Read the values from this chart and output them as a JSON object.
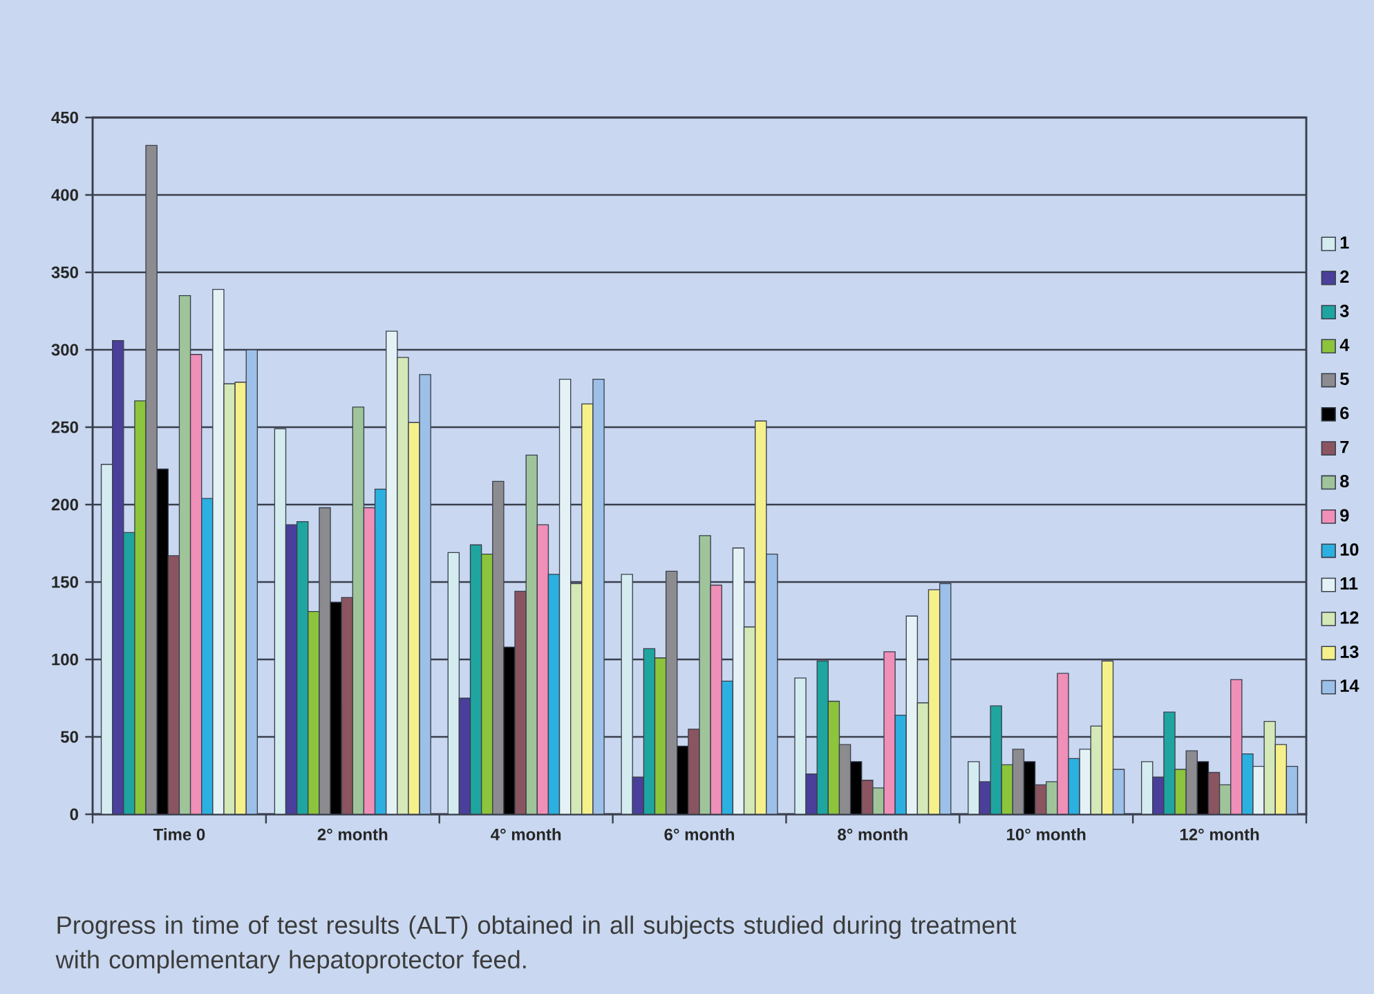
{
  "chart_data": {
    "type": "bar",
    "categories": [
      "Time 0",
      "2° month",
      "4° month",
      "6° month",
      "8° month",
      "10° month",
      "12° month"
    ],
    "series": [
      {
        "name": "1",
        "color": "#d4ecf0",
        "values": [
          226,
          249,
          169,
          155,
          88,
          34,
          34
        ]
      },
      {
        "name": "2",
        "color": "#4a3f9a",
        "values": [
          306,
          187,
          75,
          24,
          26,
          21,
          24
        ]
      },
      {
        "name": "3",
        "color": "#1fa5a0",
        "values": [
          182,
          189,
          174,
          107,
          99,
          70,
          66
        ]
      },
      {
        "name": "4",
        "color": "#8cc43c",
        "values": [
          267,
          131,
          168,
          101,
          73,
          32,
          29
        ]
      },
      {
        "name": "5",
        "color": "#8c8c90",
        "values": [
          432,
          198,
          215,
          157,
          45,
          42,
          41
        ]
      },
      {
        "name": "6",
        "color": "#000000",
        "values": [
          223,
          137,
          108,
          44,
          34,
          34,
          34
        ]
      },
      {
        "name": "7",
        "color": "#8a5560",
        "values": [
          167,
          140,
          144,
          55,
          22,
          19,
          27
        ]
      },
      {
        "name": "8",
        "color": "#9fc49a",
        "values": [
          335,
          263,
          232,
          180,
          17,
          21,
          19
        ]
      },
      {
        "name": "9",
        "color": "#f08fb8",
        "values": [
          297,
          198,
          187,
          148,
          105,
          91,
          87
        ]
      },
      {
        "name": "10",
        "color": "#2bb0e0",
        "values": [
          204,
          210,
          155,
          86,
          64,
          36,
          39
        ]
      },
      {
        "name": "11",
        "color": "#e4f2f6",
        "values": [
          339,
          312,
          281,
          172,
          128,
          42,
          31
        ]
      },
      {
        "name": "12",
        "color": "#d4e8b8",
        "values": [
          278,
          295,
          149,
          121,
          72,
          57,
          60
        ]
      },
      {
        "name": "13",
        "color": "#f5f08a",
        "values": [
          279,
          253,
          265,
          254,
          145,
          99,
          45
        ]
      },
      {
        "name": "14",
        "color": "#9cc0e8",
        "values": [
          300,
          284,
          281,
          168,
          149,
          29,
          31
        ]
      }
    ],
    "ylim": [
      0,
      450
    ],
    "yticks": [
      0,
      50,
      100,
      150,
      200,
      250,
      300,
      350,
      400,
      450
    ],
    "grid": "y",
    "legend": "right",
    "annotations": [
      "Progress in time of test results (ALT) obtained in all subjects studied during treatment with complementary hepatoprotector feed."
    ]
  }
}
